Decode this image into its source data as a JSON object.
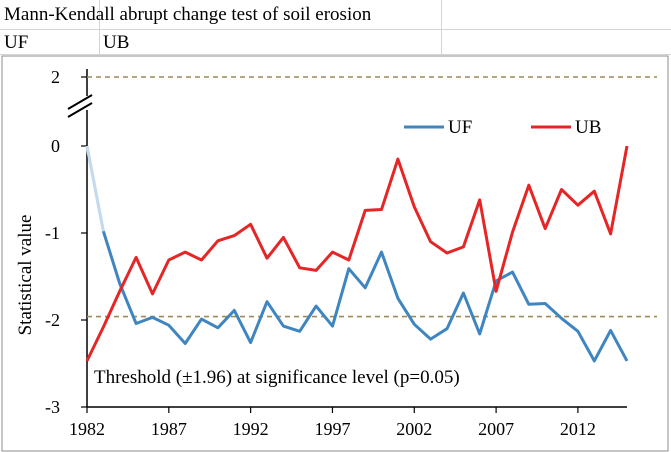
{
  "sheet": {
    "title": "Mann-Kendall abrupt change test of soil erosion",
    "cells": [
      "UF",
      "UB"
    ]
  },
  "chart_data": {
    "type": "line",
    "title": "",
    "xlabel": "",
    "ylabel": "Statistical value",
    "xlim": [
      1982,
      2015
    ],
    "x_ticks": [
      1982,
      1987,
      1992,
      1997,
      2002,
      2007,
      2012
    ],
    "y_ticks": [
      {
        "value": 0,
        "label": "0"
      },
      {
        "value": -1,
        "label": "-1"
      },
      {
        "value": -2,
        "label": "-2"
      },
      {
        "value": -3,
        "label": "-3"
      }
    ],
    "y_break_label": "2",
    "ylim": [
      -3,
      0
    ],
    "threshold": 1.96,
    "threshold_text": "Threshold (±1.96)  at significance level (p=0.05)",
    "legend_position": "top-right",
    "colors": {
      "UF": "#3f86c1",
      "UB": "#e52626",
      "threshold": "#9c8a57"
    },
    "x": [
      1982,
      1983,
      1984,
      1985,
      1986,
      1987,
      1988,
      1989,
      1990,
      1991,
      1992,
      1993,
      1994,
      1995,
      1996,
      1997,
      1998,
      1999,
      2000,
      2001,
      2002,
      2003,
      2004,
      2005,
      2006,
      2007,
      2008,
      2009,
      2010,
      2011,
      2012,
      2013,
      2014,
      2015
    ],
    "series": [
      {
        "name": "UF",
        "values": [
          0.0,
          -0.98,
          -1.58,
          -2.04,
          -1.97,
          -2.06,
          -2.27,
          -1.99,
          -2.09,
          -1.89,
          -2.26,
          -1.79,
          -2.07,
          -2.13,
          -1.84,
          -2.07,
          -1.41,
          -1.63,
          -1.22,
          -1.75,
          -2.05,
          -2.22,
          -2.1,
          -1.69,
          -2.16,
          -1.55,
          -1.45,
          -1.82,
          -1.81,
          -1.98,
          -2.13,
          -2.47,
          -2.12,
          -2.47
        ]
      },
      {
        "name": "UB",
        "values": [
          -2.47,
          -2.08,
          -1.67,
          -1.28,
          -1.7,
          -1.31,
          -1.22,
          -1.31,
          -1.09,
          -1.03,
          -0.9,
          -1.29,
          -1.05,
          -1.4,
          -1.43,
          -1.22,
          -1.31,
          -0.74,
          -0.73,
          -0.15,
          -0.7,
          -1.1,
          -1.23,
          -1.16,
          -0.62,
          -1.67,
          -0.99,
          -0.45,
          -0.95,
          -0.5,
          -0.68,
          -0.52,
          -1.01,
          0.0
        ]
      }
    ]
  }
}
